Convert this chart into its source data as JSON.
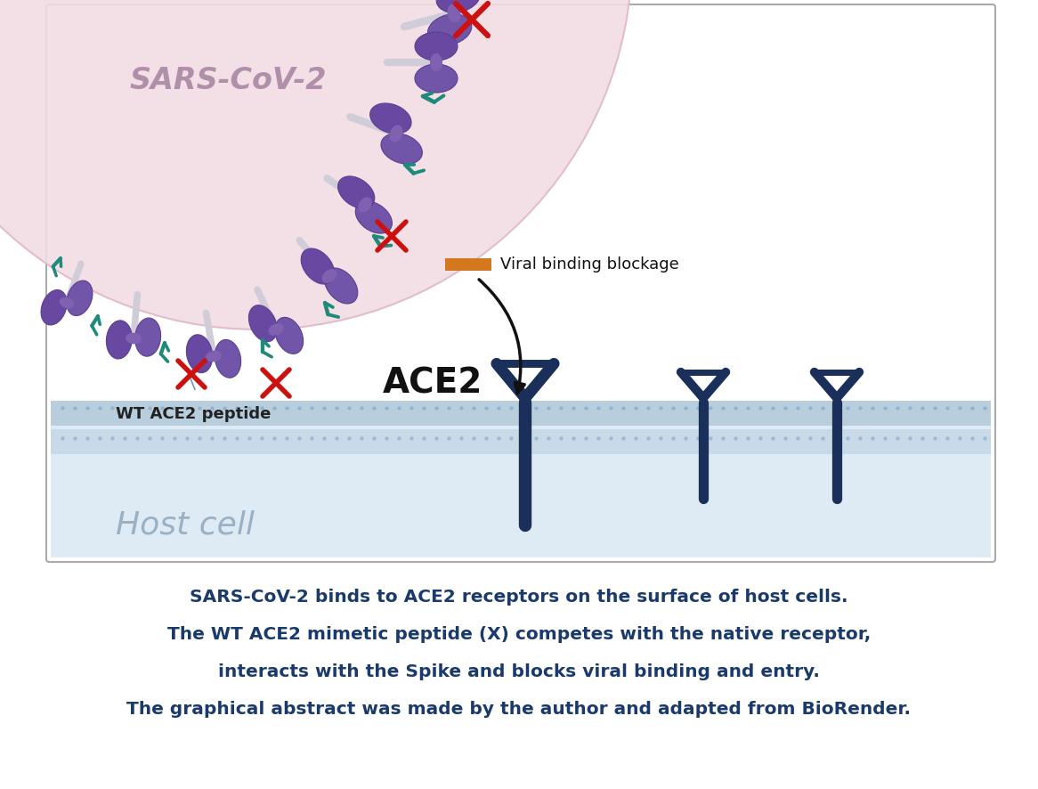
{
  "bg_color": "#ffffff",
  "box_facecolor": "#ffffff",
  "box_edgecolor": "#aaaaaa",
  "virus_color": "#f2dce4",
  "virus_edge": "#e0b8c8",
  "spike_body_color": "#7055a8",
  "spike_dark_color": "#5a4090",
  "spike_stem_color": "#d0cce0",
  "peptide_color": "#1e8a7a",
  "ace2_color": "#1a2f5a",
  "membrane_top_color": "#b8cedd",
  "membrane_bot_color": "#c8dae8",
  "host_bg_color": "#deeaf4",
  "dot_color": "#8aabcc",
  "red_x_color": "#cc1111",
  "text_color": "#1a3a6b",
  "orange_color": "#d47820",
  "arrow_color": "#111111",
  "sars_label": "SARS-CoV-2",
  "ace2_label": "ACE2",
  "host_cell_label": "Host cell",
  "wt_label": "WT ACE2 peptide",
  "viral_blockage_label": "Viral binding blockage",
  "caption_line1": "SARS-CoV-2 binds to ACE2 receptors on the surface of host cells.",
  "caption_line2": "The WT ACE2 mimetic peptide (X) competes with the native receptor,",
  "caption_line3": "interacts with the Spike and blocks viral binding and entry.",
  "caption_line4": "The graphical abstract was made by the author and adapted from BioRender."
}
